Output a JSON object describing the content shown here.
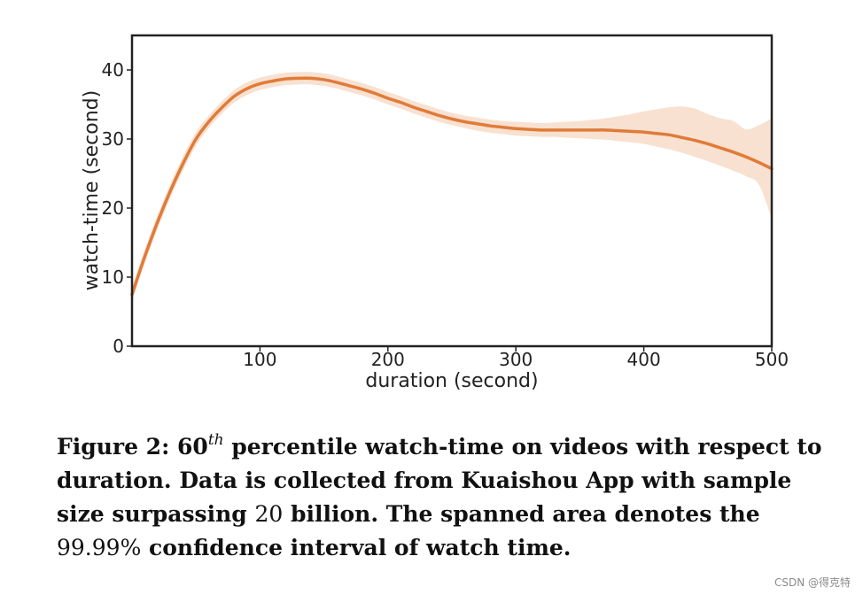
{
  "chart_data": {
    "type": "line",
    "title": "",
    "xlabel": "duration (second)",
    "ylabel": "watch-time (second)",
    "xlim": [
      0,
      500
    ],
    "ylim": [
      0,
      45
    ],
    "xticks": [
      100,
      200,
      300,
      400,
      500
    ],
    "yticks": [
      0,
      10,
      20,
      30,
      40
    ],
    "grid": false,
    "line_color": "#e07b39",
    "band_color": "#f7dcc8",
    "series": [
      {
        "x": [
          0,
          10,
          20,
          30,
          40,
          50,
          60,
          70,
          80,
          90,
          100,
          110,
          120,
          130,
          140,
          150,
          160,
          170,
          180,
          190,
          200,
          210,
          220,
          230,
          240,
          250,
          260,
          270,
          280,
          290,
          300,
          310,
          320,
          330,
          340,
          350,
          360,
          370,
          380,
          390,
          400,
          410,
          420,
          430,
          440,
          450,
          460,
          470,
          480,
          490,
          500
        ],
        "y": [
          7.5,
          13,
          18,
          22.5,
          26.5,
          30,
          32.5,
          34.5,
          36.2,
          37.3,
          38,
          38.4,
          38.7,
          38.8,
          38.8,
          38.6,
          38.2,
          37.7,
          37.2,
          36.6,
          35.9,
          35.3,
          34.6,
          34,
          33.4,
          32.9,
          32.5,
          32.2,
          31.9,
          31.7,
          31.5,
          31.4,
          31.3,
          31.3,
          31.3,
          31.3,
          31.3,
          31.3,
          31.2,
          31.1,
          31,
          30.8,
          30.6,
          30.2,
          29.8,
          29.3,
          28.7,
          28.1,
          27.4,
          26.6,
          25.7
        ],
        "lower": [
          6.5,
          12,
          17,
          21.5,
          25.5,
          29,
          31.6,
          33.6,
          35.3,
          36.4,
          37.1,
          37.5,
          37.8,
          37.9,
          37.9,
          37.7,
          37.3,
          36.8,
          36.3,
          35.7,
          35,
          34.4,
          33.7,
          33.1,
          32.5,
          32,
          31.6,
          31.2,
          30.9,
          30.7,
          30.5,
          30.4,
          30.3,
          30.3,
          30.2,
          30.1,
          30,
          29.9,
          29.7,
          29.5,
          29.3,
          28.9,
          28.5,
          28,
          27.4,
          26.8,
          26.1,
          25.4,
          24.6,
          23.4,
          18.5
        ],
        "upper": [
          8.5,
          14,
          19,
          23.5,
          27.5,
          31,
          33.4,
          35.4,
          37.1,
          38.2,
          38.9,
          39.3,
          39.6,
          39.7,
          39.7,
          39.5,
          39.1,
          38.6,
          38.1,
          37.5,
          36.8,
          36.2,
          35.5,
          34.9,
          34.3,
          33.8,
          33.4,
          33.1,
          32.8,
          32.6,
          32.5,
          32.4,
          32.3,
          32.4,
          32.5,
          32.6,
          32.8,
          33,
          33.3,
          33.6,
          34,
          34.3,
          34.6,
          34.7,
          34.4,
          33.6,
          33,
          32.6,
          31.4,
          32,
          33
        ]
      }
    ]
  },
  "caption": {
    "fig_label": "Figure 2: ",
    "fig_num": "60",
    "superscript": "th",
    "text1": " percentile watch-time on videos with respect to duration. Data is collected from Kuaishou App with sample size surpassing ",
    "num1": "20",
    "text2": " billion. The spanned area denotes the ",
    "num2": "99.99%",
    "text3": " confidence interval of watch time."
  },
  "watermark": "CSDN @得克特"
}
